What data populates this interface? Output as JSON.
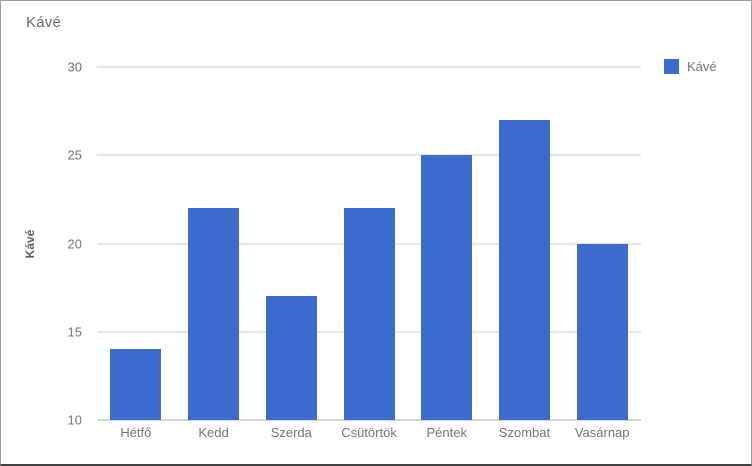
{
  "chart": {
    "title": "Kávé",
    "legend": {
      "label": "Kávé"
    },
    "y_axis_title": "Kávé"
  },
  "colors": {
    "bar": "#3c6bce",
    "gridline": "#e8e8e8",
    "baseline": "#d6d6d6",
    "axis_text": "#757575",
    "title_text": "#6b6b6b",
    "frame_border": "#9e9e9e",
    "frame_border_bottom": "#424242",
    "background": "#ffffff"
  },
  "chart_data": {
    "type": "bar",
    "title": "Kávé",
    "xlabel": "",
    "ylabel": "Kávé",
    "categories": [
      "Hétfő",
      "Kedd",
      "Szerda",
      "Csütörtök",
      "Péntek",
      "Szombat",
      "Vasárnap"
    ],
    "series": [
      {
        "name": "Kávé",
        "color": "#3c6bce",
        "values": [
          14,
          22,
          17,
          22,
          25,
          27,
          20
        ]
      }
    ],
    "ylim": [
      10,
      30
    ],
    "yticks": [
      10,
      15,
      20,
      25,
      30
    ],
    "grid": true,
    "legend_position": "top-right"
  }
}
